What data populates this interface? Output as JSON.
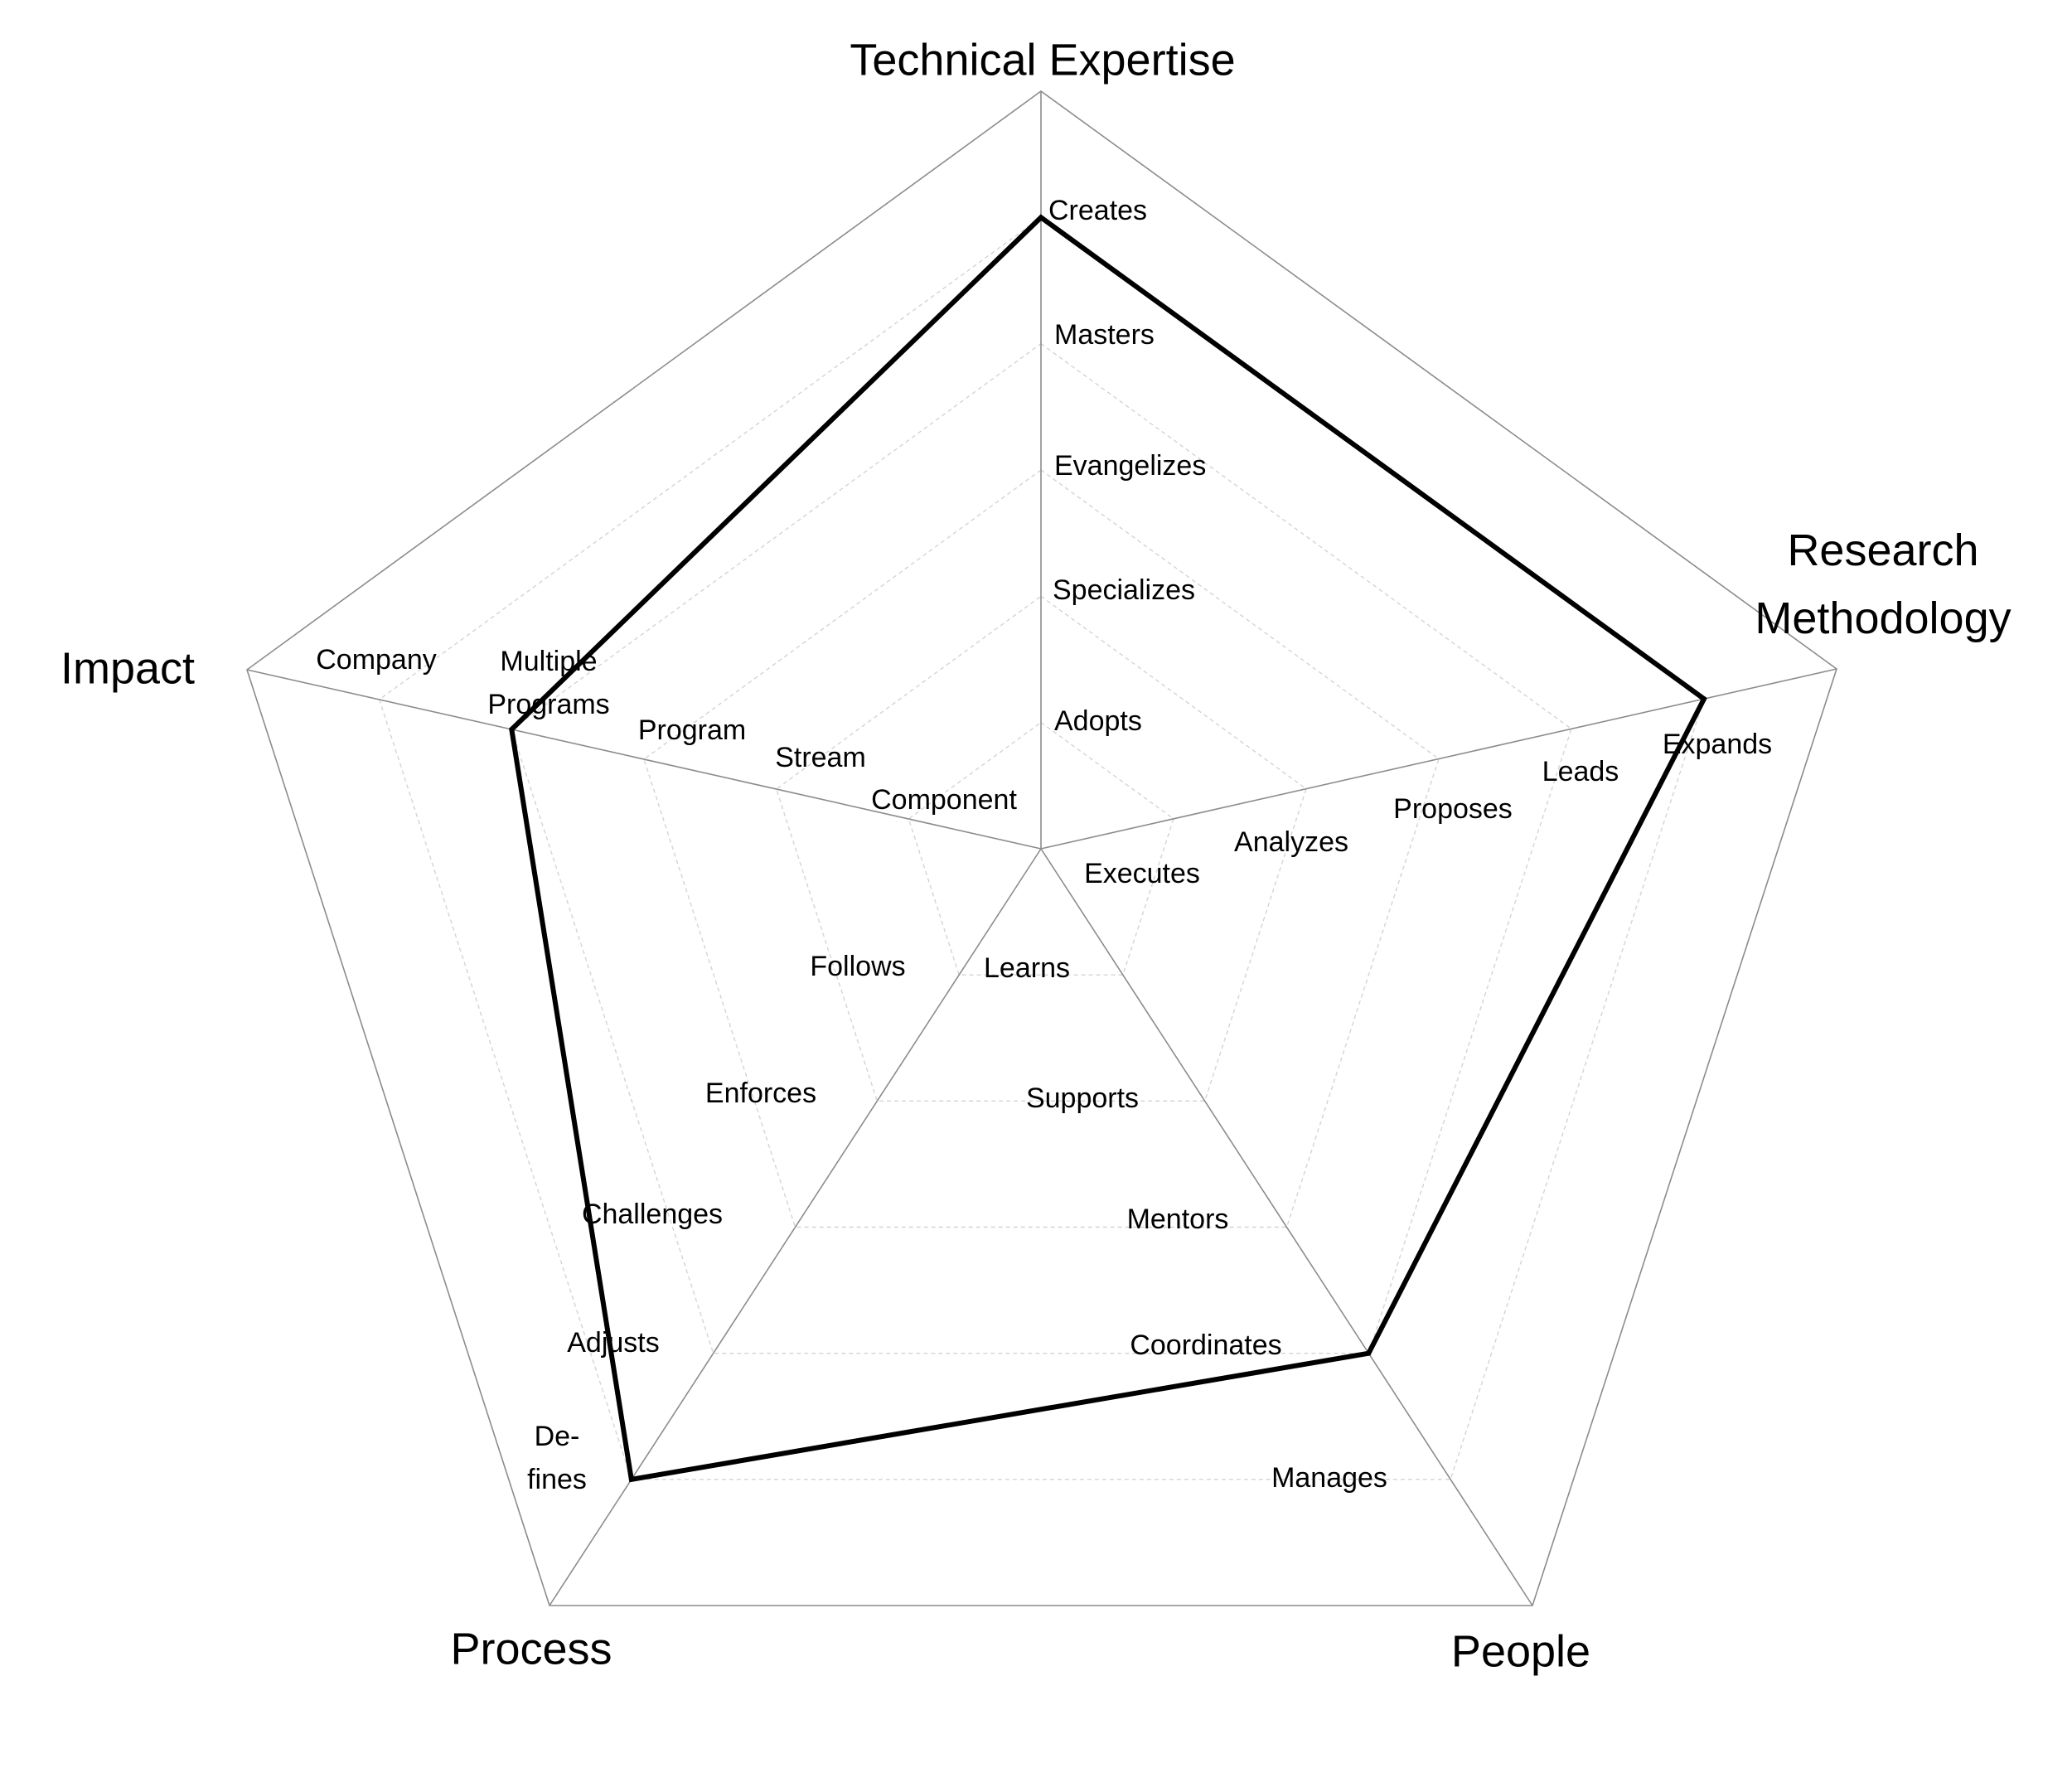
{
  "chart_data": {
    "type": "radar",
    "title": "",
    "range": [
      0,
      6
    ],
    "grid": true,
    "legend": "none",
    "axes": [
      {
        "name": "Technical Expertise",
        "levels": [
          "Adopts",
          "Specializes",
          "Evangelizes",
          "Masters",
          "Creates"
        ]
      },
      {
        "name": "Research Methodology",
        "levels": [
          "Executes",
          "Analyzes",
          "Proposes",
          "Leads",
          "Expands"
        ]
      },
      {
        "name": "People",
        "levels": [
          "Learns",
          "Supports",
          "Mentors",
          "Coordinates",
          "Manages"
        ]
      },
      {
        "name": "Process",
        "levels": [
          "Follows",
          "Enforces",
          "Challenges",
          "Adjusts",
          "De-fines"
        ]
      },
      {
        "name": "Impact",
        "levels": [
          "Component",
          "Stream",
          "Program",
          "Multiple Programs",
          "Company"
        ]
      }
    ],
    "series": [
      {
        "values": [
          5,
          5,
          4,
          5,
          4
        ],
        "color": "#000000"
      }
    ],
    "colors": {
      "grid": "#d4d4d4",
      "axis": "#8c8c8c",
      "series": "#000000"
    }
  }
}
